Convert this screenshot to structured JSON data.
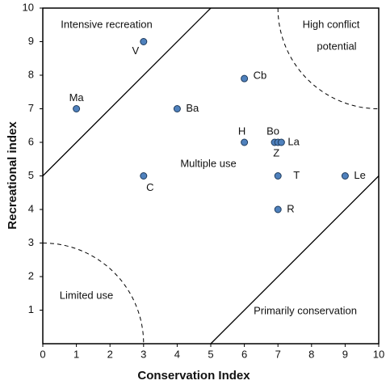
{
  "chart_data": {
    "type": "scatter",
    "x_label": "Conservation Index",
    "y_label": "Recreational index",
    "labels": [
      "V",
      "Ma",
      "Ba",
      "Cb",
      "H",
      "Bo",
      "Z",
      "La",
      "C",
      "T",
      "Le",
      "R"
    ],
    "x": [
      3,
      1,
      4,
      6,
      6,
      6.9,
      7,
      7.1,
      3,
      7,
      9,
      7
    ],
    "y": [
      9,
      7,
      7,
      7.9,
      6,
      6,
      6,
      6,
      5,
      5,
      5,
      4
    ],
    "color": "#4f81bd",
    "xlim": [
      0,
      10
    ],
    "ylim": [
      0,
      10
    ],
    "xticks": [
      0,
      1,
      2,
      3,
      4,
      5,
      6,
      7,
      8,
      9,
      10
    ],
    "yticks": [
      1,
      2,
      3,
      4,
      5,
      6,
      7,
      8,
      9,
      10
    ],
    "annotations": [
      "Intensive recreation",
      "High conflict",
      "potential",
      "Multiple use",
      "Limited use",
      "Primarily conservation"
    ]
  }
}
